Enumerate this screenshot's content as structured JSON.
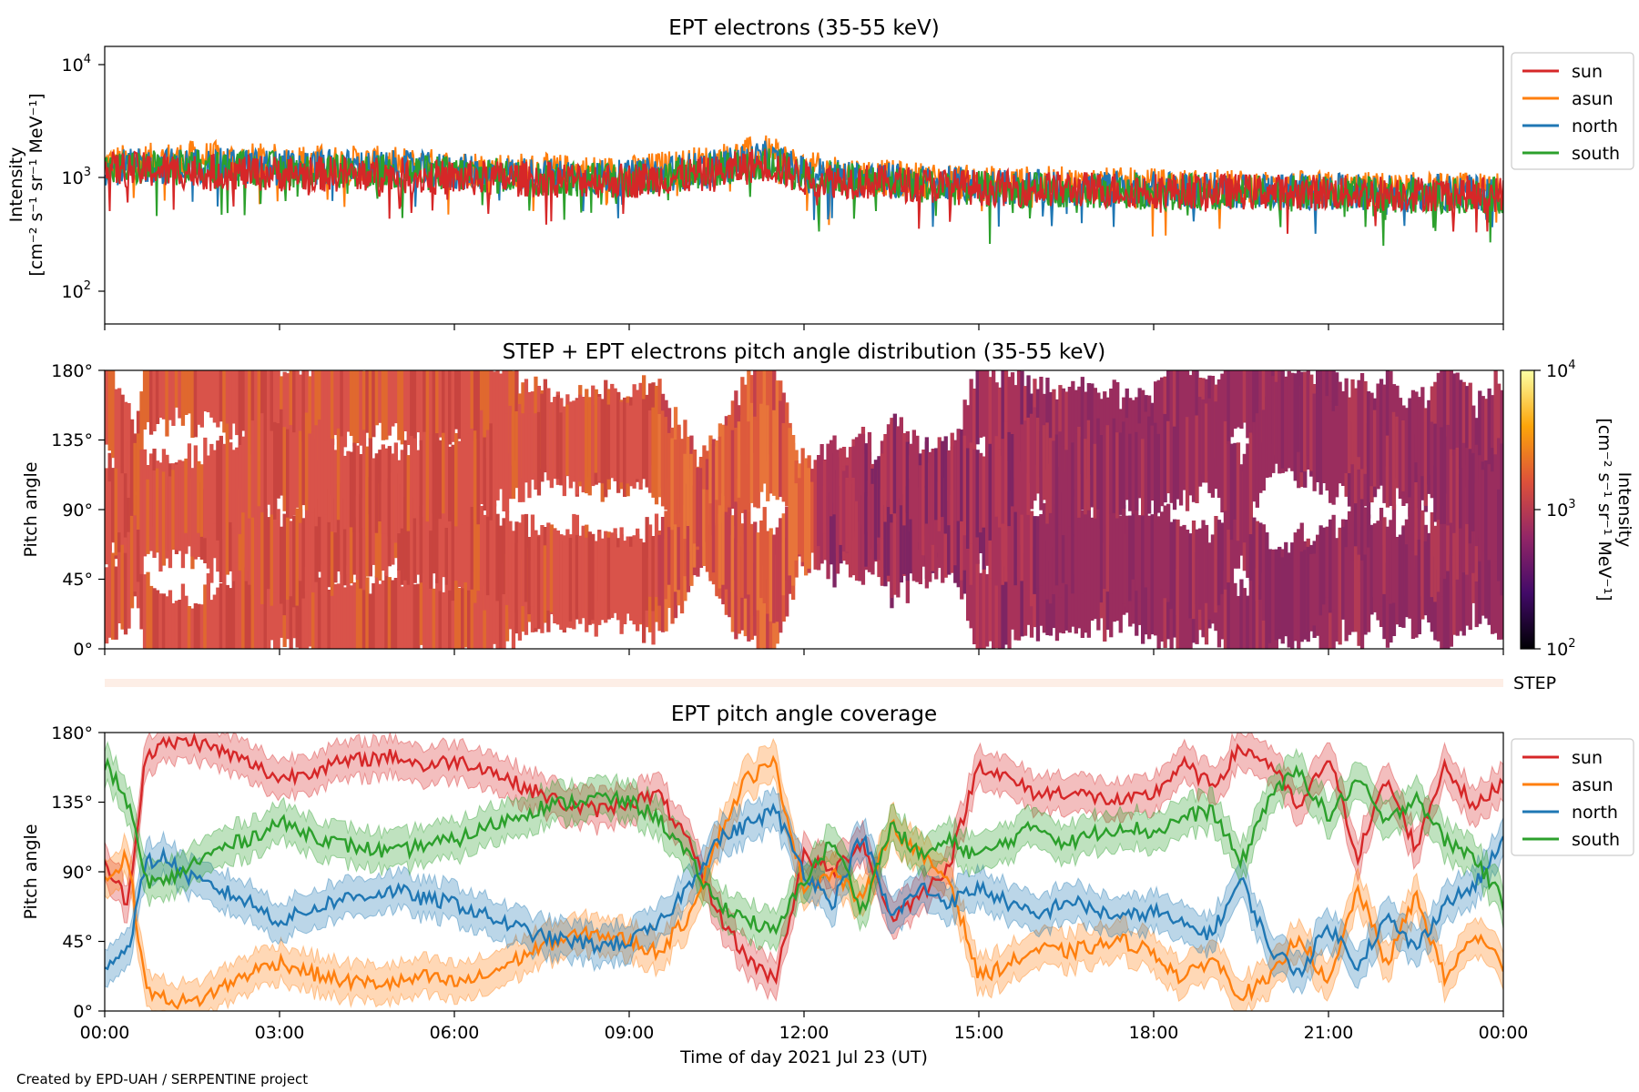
{
  "footer": {
    "credit": "Created by EPD-UAH / SERPENTINE project"
  },
  "colors": {
    "sun": "#d62728",
    "asun": "#ff7f0e",
    "north": "#1f77b4",
    "south": "#2ca02c"
  },
  "chart_data": [
    {
      "type": "line",
      "title": "EPT electrons (35-55 keV)",
      "ylabel": "Intensity",
      "ylabel_unit": "[cm⁻² s⁻¹ sr⁻¹ MeV⁻¹]",
      "yscale": "log",
      "ylim": [
        50,
        15000
      ],
      "yticks": [
        "10",
        "10",
        "10"
      ],
      "ytick_exponents": [
        "2",
        "3",
        "4"
      ],
      "xlim": [
        0,
        24
      ],
      "legend": "outside-right",
      "series": [
        {
          "name": "sun",
          "x": [
            0,
            1.5,
            3,
            4.5,
            6,
            7.5,
            9,
            10.5,
            11.3,
            12,
            13.5,
            15,
            16.5,
            18,
            19.5,
            21,
            22.5,
            24
          ],
          "values": [
            1200,
            1150,
            1100,
            1080,
            1000,
            980,
            950,
            1100,
            1350,
            1000,
            900,
            820,
            800,
            780,
            760,
            740,
            730,
            720
          ]
        },
        {
          "name": "asun",
          "x": [
            0,
            1.5,
            3,
            4.5,
            6,
            7.5,
            9,
            10.5,
            11.3,
            12,
            13.5,
            15,
            16.5,
            18,
            19.5,
            21,
            22.5,
            24
          ],
          "values": [
            1350,
            1500,
            1400,
            1350,
            1250,
            1150,
            1100,
            1400,
            1700,
            1200,
            1000,
            900,
            880,
            850,
            820,
            800,
            780,
            770
          ]
        },
        {
          "name": "north",
          "x": [
            0,
            1.5,
            3,
            4.5,
            6,
            7.5,
            9,
            10.5,
            11.3,
            12,
            13.5,
            15,
            16.5,
            18,
            19.5,
            21,
            22.5,
            24
          ],
          "values": [
            1250,
            1300,
            1250,
            1250,
            1150,
            1050,
            1000,
            1250,
            1500,
            1100,
            950,
            850,
            800,
            800,
            780,
            760,
            750,
            740
          ]
        },
        {
          "name": "south",
          "x": [
            0,
            1.5,
            3,
            4.5,
            6,
            7.5,
            9,
            10.5,
            11.3,
            12,
            13.5,
            15,
            16.5,
            18,
            19.5,
            21,
            22.5,
            24
          ],
          "values": [
            1200,
            1250,
            1200,
            1150,
            1100,
            1000,
            950,
            1200,
            1400,
            1050,
            900,
            800,
            760,
            760,
            740,
            720,
            700,
            700
          ]
        }
      ]
    },
    {
      "type": "heatmap",
      "title": "STEP + EPT electrons pitch angle distribution (35-55 keV)",
      "ylabel": "Pitch angle",
      "ylim": [
        0,
        180
      ],
      "yticks": [
        "0°",
        "45°",
        "90°",
        "135°",
        "180°"
      ],
      "xlim": [
        0,
        24
      ],
      "colorscale": "inferno",
      "colorbar_label": "Intensity",
      "colorbar_unit": "[cm⁻² s⁻¹ sr⁻¹ MeV⁻¹]",
      "colorbar_ticks": [
        "10",
        "10",
        "10"
      ],
      "colorbar_exponents": [
        "2",
        "3",
        "4"
      ],
      "colorbar_range": [
        100,
        10000
      ],
      "step_strip_label": "STEP"
    },
    {
      "type": "line",
      "title": "EPT pitch angle coverage",
      "ylabel": "Pitch angle",
      "xlabel": "Time of day 2021 Jul 23 (UT)",
      "ylim": [
        0,
        180
      ],
      "yticks": [
        "0°",
        "45°",
        "90°",
        "135°",
        "180°"
      ],
      "xlim": [
        0,
        24
      ],
      "xticks": [
        "00:00",
        "03:00",
        "06:00",
        "09:00",
        "12:00",
        "15:00",
        "18:00",
        "21:00",
        "00:00"
      ],
      "band_halfwidth_deg": 12,
      "legend": "outside-right",
      "series": [
        {
          "name": "sun",
          "x": [
            0,
            0.4,
            0.7,
            1,
            1.5,
            2,
            2.5,
            3,
            3.5,
            4,
            4.5,
            5,
            5.5,
            6,
            6.5,
            7,
            7.5,
            8,
            8.5,
            9,
            9.5,
            10,
            10.5,
            11,
            11.5,
            12,
            12.5,
            13,
            13.5,
            14,
            14.5,
            15,
            15.5,
            16,
            16.5,
            17,
            17.5,
            18,
            18.5,
            19,
            19.5,
            20,
            20.5,
            21,
            21.5,
            22,
            22.5,
            23,
            23.5,
            24
          ],
          "values": [
            95,
            70,
            165,
            172,
            175,
            168,
            160,
            150,
            155,
            160,
            163,
            165,
            158,
            162,
            158,
            148,
            140,
            132,
            130,
            135,
            140,
            110,
            65,
            35,
            20,
            100,
            90,
            110,
            60,
            75,
            95,
            160,
            150,
            140,
            142,
            138,
            135,
            140,
            160,
            145,
            170,
            160,
            130,
            165,
            100,
            150,
            105,
            160,
            130,
            150
          ]
        },
        {
          "name": "asun",
          "x": [
            0,
            0.4,
            0.7,
            1,
            1.5,
            2,
            2.5,
            3,
            3.5,
            4,
            4.5,
            5,
            5.5,
            6,
            6.5,
            7,
            7.5,
            8,
            8.5,
            9,
            9.5,
            10,
            10.5,
            11,
            11.5,
            12,
            12.5,
            13,
            13.5,
            14,
            14.5,
            15,
            15.5,
            16,
            16.5,
            17,
            17.5,
            18,
            18.5,
            19,
            19.5,
            20,
            20.5,
            21,
            21.5,
            22,
            22.5,
            23,
            23.5,
            24
          ],
          "values": [
            85,
            100,
            15,
            8,
            5,
            15,
            25,
            32,
            25,
            20,
            18,
            18,
            22,
            18,
            22,
            32,
            42,
            48,
            50,
            45,
            38,
            60,
            110,
            150,
            160,
            80,
            90,
            70,
            120,
            100,
            85,
            22,
            30,
            40,
            38,
            42,
            45,
            38,
            20,
            35,
            10,
            20,
            50,
            15,
            80,
            30,
            75,
            20,
            50,
            30
          ]
        },
        {
          "name": "north",
          "x": [
            0,
            0.4,
            0.7,
            1,
            1.5,
            2,
            2.5,
            3,
            3.5,
            4,
            4.5,
            5,
            5.5,
            6,
            6.5,
            7,
            7.5,
            8,
            8.5,
            9,
            9.5,
            10,
            10.5,
            11,
            11.5,
            12,
            12.5,
            13,
            13.5,
            14,
            14.5,
            15,
            15.5,
            16,
            16.5,
            17,
            17.5,
            18,
            18.5,
            19,
            19.5,
            20,
            20.5,
            21,
            21.5,
            22,
            22.5,
            23,
            23.5,
            24
          ],
          "values": [
            30,
            40,
            95,
            100,
            85,
            78,
            70,
            58,
            65,
            72,
            75,
            78,
            72,
            70,
            62,
            55,
            48,
            45,
            42,
            45,
            55,
            80,
            110,
            120,
            130,
            90,
            70,
            115,
            60,
            80,
            70,
            80,
            70,
            60,
            72,
            65,
            60,
            65,
            55,
            50,
            85,
            40,
            25,
            55,
            30,
            60,
            40,
            70,
            80,
            110
          ]
        },
        {
          "name": "south",
          "x": [
            0,
            0.4,
            0.7,
            1,
            1.5,
            2,
            2.5,
            3,
            3.5,
            4,
            4.5,
            5,
            5.5,
            6,
            6.5,
            7,
            7.5,
            8,
            8.5,
            9,
            9.5,
            10,
            10.5,
            11,
            11.5,
            12,
            12.5,
            13,
            13.5,
            14,
            14.5,
            15,
            15.5,
            16,
            16.5,
            17,
            17.5,
            18,
            18.5,
            19,
            19.5,
            20,
            20.5,
            21,
            21.5,
            22,
            22.5,
            23,
            23.5,
            24
          ],
          "values": [
            160,
            135,
            85,
            82,
            95,
            105,
            112,
            122,
            115,
            108,
            105,
            102,
            108,
            110,
            118,
            125,
            132,
            135,
            138,
            135,
            125,
            100,
            70,
            60,
            50,
            85,
            110,
            65,
            120,
            100,
            110,
            100,
            110,
            120,
            108,
            115,
            120,
            115,
            125,
            130,
            95,
            140,
            155,
            125,
            150,
            120,
            140,
            110,
            100,
            70
          ]
        }
      ]
    }
  ]
}
